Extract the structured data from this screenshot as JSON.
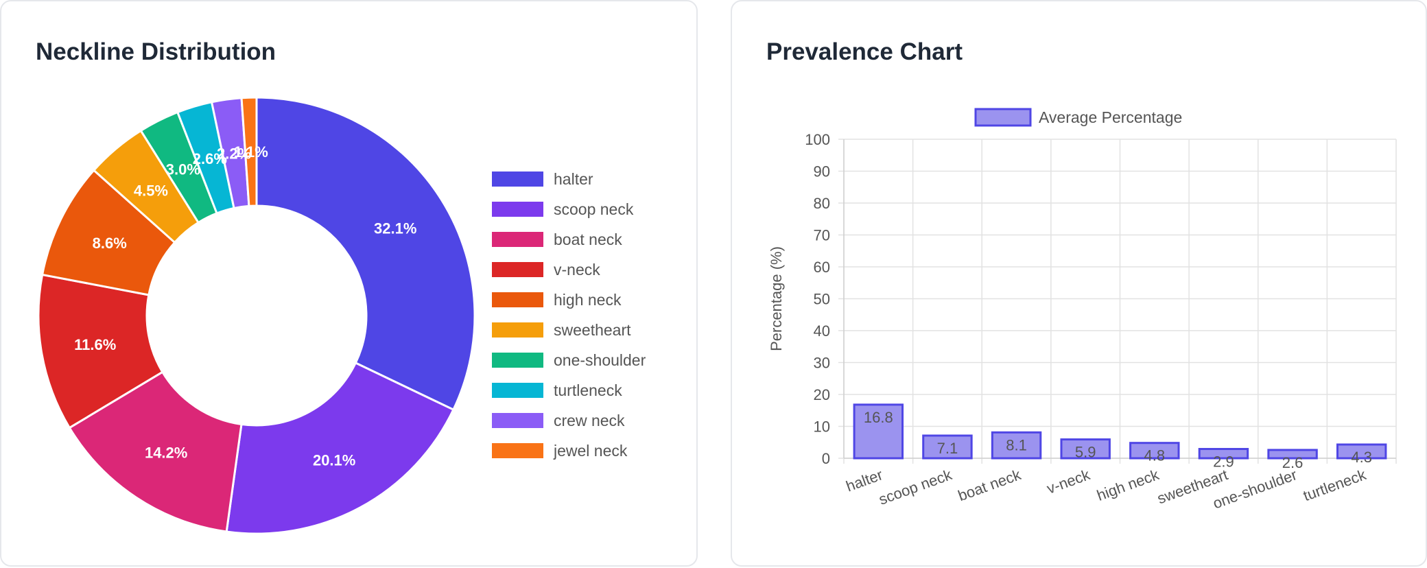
{
  "donut_card": {
    "title": "Neckline Distribution"
  },
  "bar_card": {
    "title": "Prevalence Chart"
  },
  "chart_data": [
    {
      "type": "pie",
      "variant": "donut",
      "title": "Neckline Distribution",
      "legend_position": "right",
      "labels": [
        "halter",
        "scoop neck",
        "boat neck",
        "v-neck",
        "high neck",
        "sweetheart",
        "one-shoulder",
        "turtleneck",
        "crew neck",
        "jewel neck"
      ],
      "values": [
        32.1,
        20.1,
        14.2,
        11.6,
        8.6,
        4.5,
        3.0,
        2.6,
        2.2,
        1.1
      ],
      "value_labels": [
        "32.1%",
        "20.1%",
        "14.2%",
        "11.6%",
        "8.6%",
        "4.5%",
        "3.0%",
        "2.6%",
        "2.2%",
        "1.1%"
      ],
      "colors": [
        "#4f46e5",
        "#7c3aed",
        "#db2777",
        "#dc2626",
        "#ea580c",
        "#f59e0b",
        "#10b981",
        "#06b6d4",
        "#8b5cf6",
        "#f97316"
      ]
    },
    {
      "type": "bar",
      "title": "Prevalence Chart",
      "categories": [
        "halter",
        "scoop neck",
        "boat neck",
        "v-neck",
        "high neck",
        "sweetheart",
        "one-shoulder",
        "turtleneck"
      ],
      "series": [
        {
          "name": "Average Percentage",
          "values": [
            16.8,
            7.1,
            8.1,
            5.9,
            4.8,
            2.9,
            2.6,
            4.3
          ]
        }
      ],
      "value_labels": [
        "16.8",
        "7.1",
        "8.1",
        "5.9",
        "4.8",
        "2.9",
        "2.6",
        "4.3"
      ],
      "ylabel": "Percentage (%)",
      "xlabel": "",
      "ylim": [
        0,
        100
      ],
      "yticks": [
        "0",
        "10",
        "20",
        "30",
        "40",
        "50",
        "60",
        "70",
        "80",
        "90",
        "100"
      ],
      "grid": true,
      "legend_position": "top",
      "bar_fill": "#9b93ef",
      "bar_border": "#4f46e5"
    }
  ]
}
